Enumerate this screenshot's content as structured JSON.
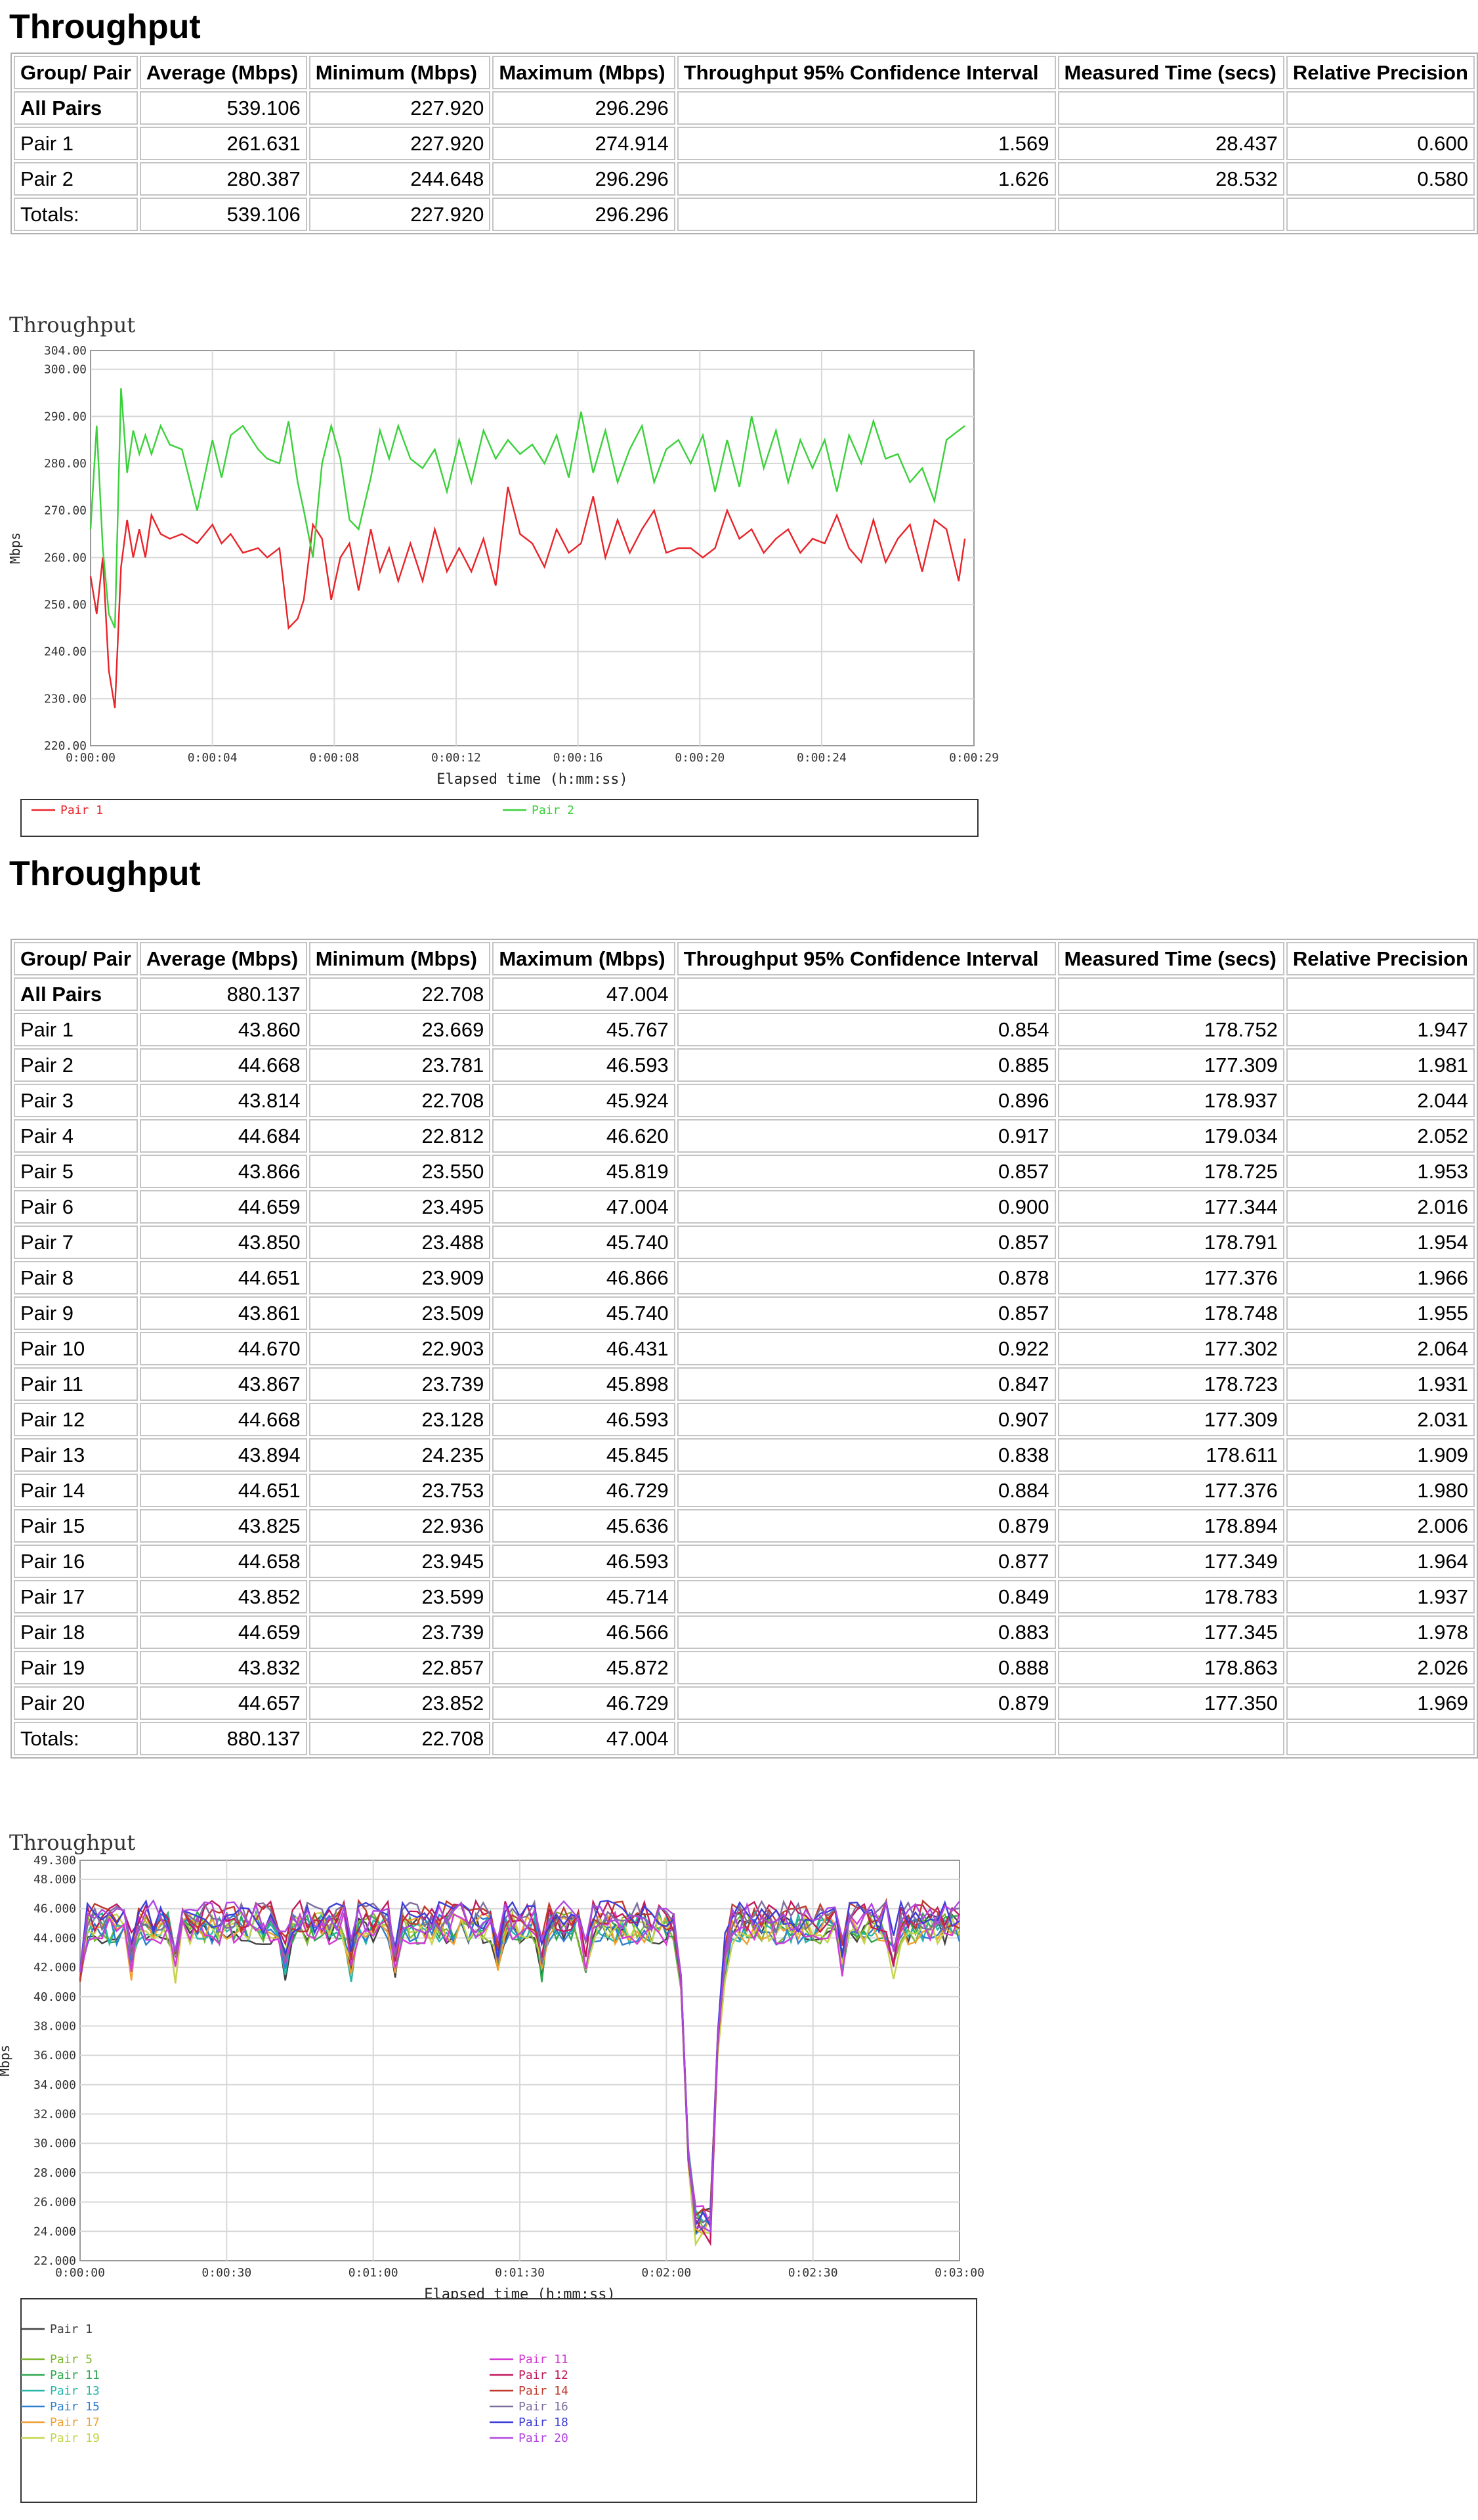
{
  "sections": [
    {
      "title": "Throughput",
      "table": {
        "headers": [
          "Group/ Pair",
          "Average (Mbps)",
          "Minimum (Mbps)",
          "Maximum (Mbps)",
          "Throughput 95% Confidence Interval",
          "Measured Time (secs)",
          "Relative Precision"
        ],
        "rows": [
          [
            "All Pairs",
            "539.106",
            "227.920",
            "296.296",
            "",
            "",
            ""
          ],
          [
            "Pair 1",
            "261.631",
            "227.920",
            "274.914",
            "1.569",
            "28.437",
            "0.600"
          ],
          [
            "Pair 2",
            "280.387",
            "244.648",
            "296.296",
            "1.626",
            "28.532",
            "0.580"
          ],
          [
            "Totals:",
            "539.106",
            "227.920",
            "296.296",
            "",
            "",
            ""
          ]
        ]
      }
    },
    {
      "title": "Throughput",
      "table": {
        "headers": [
          "Group/ Pair",
          "Average (Mbps)",
          "Minimum (Mbps)",
          "Maximum (Mbps)",
          "Throughput 95% Confidence Interval",
          "Measured Time (secs)",
          "Relative Precision"
        ],
        "rows": [
          [
            "All Pairs",
            "880.137",
            "22.708",
            "47.004",
            "",
            "",
            ""
          ],
          [
            "Pair 1",
            "43.860",
            "23.669",
            "45.767",
            "0.854",
            "178.752",
            "1.947"
          ],
          [
            "Pair 2",
            "44.668",
            "23.781",
            "46.593",
            "0.885",
            "177.309",
            "1.981"
          ],
          [
            "Pair 3",
            "43.814",
            "22.708",
            "45.924",
            "0.896",
            "178.937",
            "2.044"
          ],
          [
            "Pair 4",
            "44.684",
            "22.812",
            "46.620",
            "0.917",
            "179.034",
            "2.052"
          ],
          [
            "Pair 5",
            "43.866",
            "23.550",
            "45.819",
            "0.857",
            "178.725",
            "1.953"
          ],
          [
            "Pair 6",
            "44.659",
            "23.495",
            "47.004",
            "0.900",
            "177.344",
            "2.016"
          ],
          [
            "Pair 7",
            "43.850",
            "23.488",
            "45.740",
            "0.857",
            "178.791",
            "1.954"
          ],
          [
            "Pair 8",
            "44.651",
            "23.909",
            "46.866",
            "0.878",
            "177.376",
            "1.966"
          ],
          [
            "Pair 9",
            "43.861",
            "23.509",
            "45.740",
            "0.857",
            "178.748",
            "1.955"
          ],
          [
            "Pair 10",
            "44.670",
            "22.903",
            "46.431",
            "0.922",
            "177.302",
            "2.064"
          ],
          [
            "Pair 11",
            "43.867",
            "23.739",
            "45.898",
            "0.847",
            "178.723",
            "1.931"
          ],
          [
            "Pair 12",
            "44.668",
            "23.128",
            "46.593",
            "0.907",
            "177.309",
            "2.031"
          ],
          [
            "Pair 13",
            "43.894",
            "24.235",
            "45.845",
            "0.838",
            "178.611",
            "1.909"
          ],
          [
            "Pair 14",
            "44.651",
            "23.753",
            "46.729",
            "0.884",
            "177.376",
            "1.980"
          ],
          [
            "Pair 15",
            "43.825",
            "22.936",
            "45.636",
            "0.879",
            "178.894",
            "2.006"
          ],
          [
            "Pair 16",
            "44.658",
            "23.945",
            "46.593",
            "0.877",
            "177.349",
            "1.964"
          ],
          [
            "Pair 17",
            "43.852",
            "23.599",
            "45.714",
            "0.849",
            "178.783",
            "1.937"
          ],
          [
            "Pair 18",
            "44.659",
            "23.739",
            "46.566",
            "0.883",
            "177.345",
            "1.978"
          ],
          [
            "Pair 19",
            "43.832",
            "22.857",
            "45.872",
            "0.888",
            "178.863",
            "2.026"
          ],
          [
            "Pair 20",
            "44.657",
            "23.852",
            "46.729",
            "0.879",
            "177.350",
            "1.969"
          ],
          [
            "Totals:",
            "880.137",
            "22.708",
            "47.004",
            "",
            "",
            ""
          ]
        ]
      }
    }
  ],
  "chart_data": [
    {
      "type": "line",
      "title": "Throughput",
      "xlabel": "Elapsed time (h:mm:ss)",
      "ylabel": "Mbps",
      "xlim": [
        0,
        29
      ],
      "ylim": [
        220,
        304
      ],
      "x_ticks": [
        0,
        4,
        8,
        12,
        16,
        20,
        24,
        29
      ],
      "x_tick_labels": [
        "0:00:00",
        "0:00:04",
        "0:00:08",
        "0:00:12",
        "0:00:16",
        "0:00:20",
        "0:00:24",
        "0:00:29"
      ],
      "y_ticks": [
        220,
        230,
        240,
        250,
        260,
        270,
        280,
        290,
        300,
        304
      ],
      "y_tick_labels": [
        "220.00",
        "230.00",
        "240.00",
        "250.00",
        "260.00",
        "270.00",
        "280.00",
        "290.00",
        "300.00",
        "304.00"
      ],
      "grid": true,
      "legend": "bottom",
      "series": [
        {
          "name": "Pair 1",
          "color": "#e8242a",
          "x": [
            0,
            0.2,
            0.4,
            0.6,
            0.8,
            1.0,
            1.2,
            1.4,
            1.6,
            1.8,
            2.0,
            2.3,
            2.6,
            3.0,
            3.5,
            4.0,
            4.3,
            4.6,
            5.0,
            5.5,
            5.8,
            6.2,
            6.5,
            6.8,
            7.0,
            7.3,
            7.6,
            7.9,
            8.2,
            8.5,
            8.8,
            9.2,
            9.5,
            9.8,
            10.1,
            10.5,
            10.9,
            11.3,
            11.7,
            12.1,
            12.5,
            12.9,
            13.3,
            13.7,
            14.1,
            14.5,
            14.9,
            15.3,
            15.7,
            16.1,
            16.5,
            16.9,
            17.3,
            17.7,
            18.1,
            18.5,
            18.9,
            19.3,
            19.7,
            20.1,
            20.5,
            20.9,
            21.3,
            21.7,
            22.1,
            22.5,
            22.9,
            23.3,
            23.7,
            24.1,
            24.5,
            24.9,
            25.3,
            25.7,
            26.1,
            26.5,
            26.9,
            27.3,
            27.7,
            28.1,
            28.5,
            28.7
          ],
          "values": [
            256,
            248,
            260,
            236,
            228,
            258,
            268,
            260,
            266,
            260,
            269,
            265,
            264,
            265,
            263,
            267,
            263,
            265,
            261,
            262,
            260,
            262,
            245,
            247,
            251,
            267,
            264,
            251,
            260,
            263,
            253,
            266,
            257,
            262,
            255,
            263,
            255,
            266,
            257,
            262,
            257,
            264,
            254,
            275,
            265,
            263,
            258,
            266,
            261,
            263,
            273,
            260,
            268,
            261,
            266,
            270,
            261,
            262,
            262,
            260,
            262,
            270,
            264,
            266,
            261,
            264,
            266,
            261,
            264,
            263,
            269,
            262,
            259,
            268,
            259,
            264,
            267,
            257,
            268,
            266,
            255,
            264
          ]
        },
        {
          "name": "Pair 2",
          "color": "#3ad13a",
          "x": [
            0,
            0.2,
            0.4,
            0.6,
            0.8,
            1.0,
            1.2,
            1.4,
            1.6,
            1.8,
            2.0,
            2.3,
            2.6,
            3.0,
            3.5,
            4.0,
            4.3,
            4.6,
            5.0,
            5.5,
            5.8,
            6.2,
            6.5,
            6.8,
            7.0,
            7.3,
            7.6,
            7.9,
            8.2,
            8.5,
            8.8,
            9.2,
            9.5,
            9.8,
            10.1,
            10.5,
            10.9,
            11.3,
            11.7,
            12.1,
            12.5,
            12.9,
            13.3,
            13.7,
            14.1,
            14.5,
            14.9,
            15.3,
            15.7,
            16.1,
            16.5,
            16.9,
            17.3,
            17.7,
            18.1,
            18.5,
            18.9,
            19.3,
            19.7,
            20.1,
            20.5,
            20.9,
            21.3,
            21.7,
            22.1,
            22.5,
            22.9,
            23.3,
            23.7,
            24.1,
            24.5,
            24.9,
            25.3,
            25.7,
            26.1,
            26.5,
            26.9,
            27.3,
            27.7,
            28.1,
            28.5,
            28.7
          ],
          "values": [
            266,
            288,
            262,
            248,
            245,
            296,
            278,
            287,
            282,
            286,
            282,
            288,
            284,
            283,
            270,
            285,
            277,
            286,
            288,
            283,
            281,
            280,
            289,
            276,
            270,
            260,
            280,
            288,
            281,
            268,
            266,
            277,
            287,
            281,
            288,
            281,
            279,
            283,
            274,
            285,
            276,
            287,
            281,
            285,
            282,
            284,
            280,
            286,
            277,
            291,
            278,
            287,
            276,
            283,
            288,
            276,
            283,
            285,
            280,
            286,
            274,
            285,
            275,
            290,
            279,
            287,
            276,
            285,
            279,
            285,
            274,
            286,
            280,
            289,
            281,
            282,
            276,
            279,
            272,
            285,
            287,
            288
          ]
        }
      ]
    },
    {
      "type": "line",
      "title": "Throughput",
      "xlabel": "Elapsed time (h:mm:ss)",
      "ylabel": "Mbps",
      "xlim": [
        0,
        180
      ],
      "ylim": [
        22,
        49.3
      ],
      "x_ticks": [
        0,
        30,
        60,
        90,
        120,
        150,
        180
      ],
      "x_tick_labels": [
        "0:00:00",
        "0:00:30",
        "0:01:00",
        "0:01:30",
        "0:02:00",
        "0:02:30",
        "0:03:00"
      ],
      "y_ticks": [
        22,
        24,
        26,
        28,
        30,
        32,
        34,
        36,
        38,
        40,
        42,
        44,
        46,
        48,
        49.3
      ],
      "y_tick_labels": [
        "22.000",
        "24.000",
        "26.000",
        "28.000",
        "30.000",
        "32.000",
        "34.000",
        "36.000",
        "38.000",
        "40.000",
        "42.000",
        "44.000",
        "46.000",
        "48.000",
        "49.300"
      ],
      "grid": true,
      "legend": "bottom",
      "series": [
        {
          "name": "Pair 1",
          "color": "#404040",
          "summary": {
            "avg": 43.86,
            "min": 23.669,
            "max": 45.767
          }
        },
        {
          "name": "Pair 5",
          "color": "#7cb82e",
          "summary": {
            "avg": 43.866,
            "min": 23.55,
            "max": 45.819
          }
        },
        {
          "name": "Pair 11",
          "color": "#2fa84f",
          "summary": {
            "avg": 43.867,
            "min": 23.739,
            "max": 45.898
          }
        },
        {
          "name": "Pair 13",
          "color": "#25b6a8",
          "summary": {
            "avg": 43.894,
            "min": 24.235,
            "max": 45.845
          }
        },
        {
          "name": "Pair 15",
          "color": "#2d7fd1",
          "summary": {
            "avg": 43.825,
            "min": 22.936,
            "max": 45.636
          }
        },
        {
          "name": "Pair 17",
          "color": "#f0a030",
          "summary": {
            "avg": 43.852,
            "min": 23.599,
            "max": 45.714
          }
        },
        {
          "name": "Pair 19",
          "color": "#c6d44a",
          "summary": {
            "avg": 43.832,
            "min": 22.857,
            "max": 45.872
          }
        },
        {
          "name": "Pair 11",
          "color": "#d33ad3",
          "summary": {
            "avg": 43.867,
            "min": 23.739,
            "max": 45.898
          }
        },
        {
          "name": "Pair 12",
          "color": "#c2185b",
          "summary": {
            "avg": 44.668,
            "min": 23.128,
            "max": 46.593
          }
        },
        {
          "name": "Pair 14",
          "color": "#c0392b",
          "summary": {
            "avg": 44.651,
            "min": 23.753,
            "max": 46.729
          }
        },
        {
          "name": "Pair 16",
          "color": "#7d6e9e",
          "summary": {
            "avg": 44.658,
            "min": 23.945,
            "max": 46.593
          }
        },
        {
          "name": "Pair 18",
          "color": "#3d3dd9",
          "summary": {
            "avg": 44.659,
            "min": 23.739,
            "max": 46.566
          }
        },
        {
          "name": "Pair 20",
          "color": "#b046e0",
          "summary": {
            "avg": 44.657,
            "min": 23.852,
            "max": 46.729
          }
        }
      ]
    }
  ]
}
